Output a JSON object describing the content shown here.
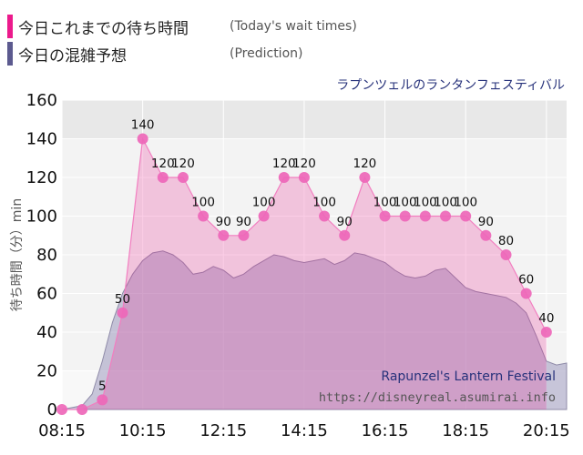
{
  "legend": {
    "actual_label": "今日これまでの待ち時間",
    "actual_sub": "(Today's wait times)",
    "prediction_label": "今日の混雑予想",
    "prediction_sub": "(Prediction)"
  },
  "attraction_jp": "ラプンツェルのランタンフェスティバル",
  "attraction_en": "Rapunzel's Lantern Festival",
  "source": "https://disneyreal.asumirai.info",
  "colors": {
    "actual": "#ec1a8c",
    "actual_point": "#ee67b9",
    "prediction": "#5c5a8f"
  },
  "chart_data": {
    "type": "area",
    "xlabel": "",
    "ylabel": "待ち時間（分）min",
    "ylim": [
      0,
      160
    ],
    "xlim": [
      "08:15",
      "20:45"
    ],
    "yticks": [
      0,
      20,
      40,
      60,
      80,
      100,
      120,
      140,
      160
    ],
    "xticks": [
      "08:15",
      "10:15",
      "12:15",
      "14:15",
      "16:15",
      "18:15",
      "20:15"
    ],
    "grid": true,
    "series": [
      {
        "name": "今日これまでの待ち時間",
        "x": [
          "08:15",
          "08:45",
          "09:15",
          "09:45",
          "10:15",
          "10:45",
          "11:15",
          "11:45",
          "12:15",
          "12:45",
          "13:15",
          "13:45",
          "14:15",
          "14:45",
          "15:15",
          "15:45",
          "16:15",
          "16:45",
          "17:15",
          "17:45",
          "18:15",
          "18:45",
          "19:15",
          "19:45",
          "20:15"
        ],
        "values": [
          0,
          0,
          5,
          50,
          140,
          120,
          120,
          100,
          90,
          90,
          100,
          120,
          120,
          100,
          90,
          120,
          100,
          100,
          100,
          100,
          100,
          90,
          80,
          60,
          40
        ],
        "data_labels": [
          "",
          "",
          "5",
          "50",
          "140",
          "120",
          "120",
          "100",
          "90",
          "90",
          "100",
          "120",
          "120",
          "100",
          "90",
          "120",
          "100",
          "100",
          "100",
          "100",
          "100",
          "90",
          "80",
          "60",
          "40"
        ]
      },
      {
        "name": "今日の混雑予想",
        "x": [
          "08:15",
          "08:45",
          "09:00",
          "09:15",
          "09:30",
          "09:45",
          "10:00",
          "10:15",
          "10:30",
          "10:45",
          "11:00",
          "11:15",
          "11:30",
          "11:45",
          "12:00",
          "12:15",
          "12:30",
          "12:45",
          "13:00",
          "13:15",
          "13:30",
          "13:45",
          "14:00",
          "14:15",
          "14:30",
          "14:45",
          "15:00",
          "15:15",
          "15:30",
          "15:45",
          "16:00",
          "16:15",
          "16:30",
          "16:45",
          "17:00",
          "17:15",
          "17:30",
          "17:45",
          "18:00",
          "18:15",
          "18:30",
          "18:45",
          "19:00",
          "19:15",
          "19:30",
          "19:45",
          "20:00",
          "20:15",
          "20:30",
          "20:45"
        ],
        "values": [
          0,
          2,
          8,
          25,
          45,
          60,
          70,
          77,
          81,
          82,
          80,
          76,
          70,
          71,
          74,
          72,
          68,
          70,
          74,
          77,
          80,
          79,
          77,
          76,
          77,
          78,
          75,
          77,
          81,
          80,
          78,
          76,
          72,
          69,
          68,
          69,
          72,
          73,
          68,
          63,
          61,
          60,
          59,
          58,
          55,
          50,
          38,
          25,
          23,
          24
        ]
      }
    ]
  }
}
